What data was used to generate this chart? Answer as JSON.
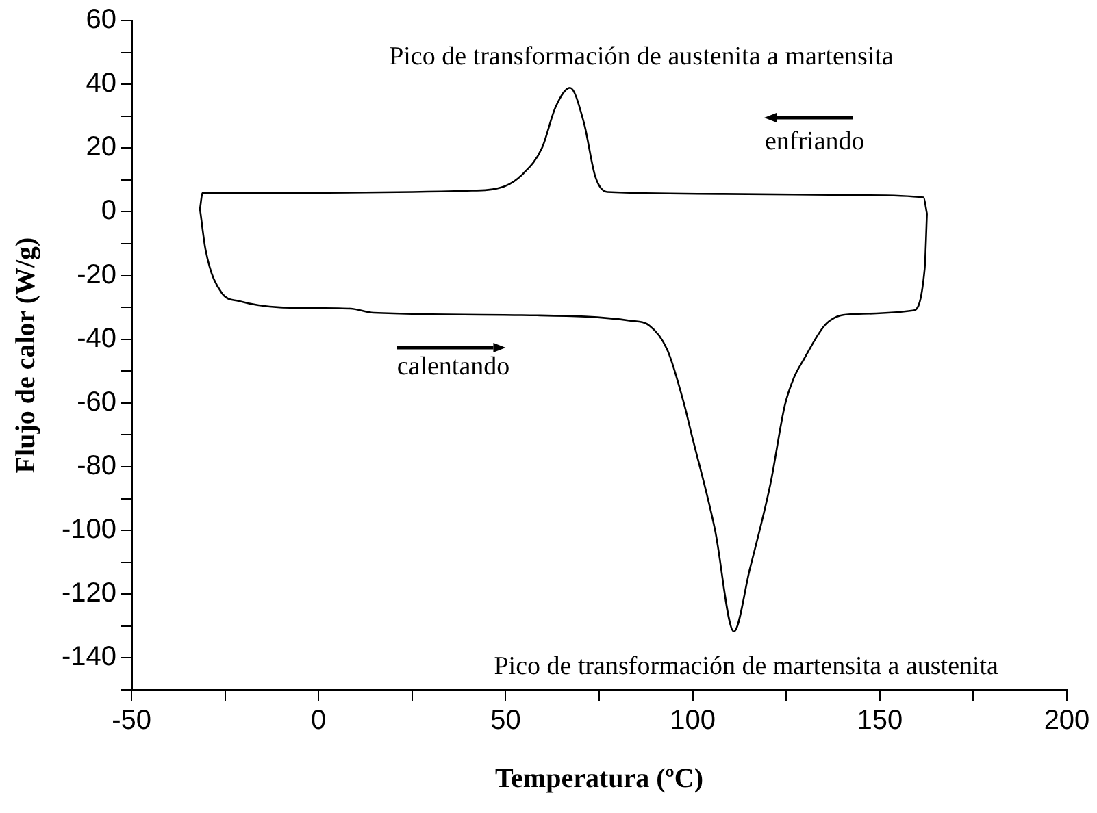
{
  "chart_data": {
    "type": "line",
    "xlabel": "Temperatura (ºC)",
    "ylabel": "Flujo de calor (W/g)",
    "series": [
      {
        "color": "#000000",
        "x": [
          -31.7,
          -30.2,
          -25.8,
          -21.4,
          -10.3,
          8.5,
          14.7,
          58.4,
          83.4,
          88.4,
          93.3,
          97.8,
          99.6,
          105.9,
          111,
          115.2,
          120.8,
          124.6,
          127,
          129.6,
          135.8,
          143.3,
          158.8,
          162,
          162.6
        ],
        "values": [
          0.9,
          -12,
          -25.6,
          -28,
          -30,
          -30.4,
          -31.7,
          -32.5,
          -34.2,
          -35.7,
          -43.6,
          -60.8,
          -69.4,
          -99.5,
          -131.7,
          -112.4,
          -85.2,
          -60.8,
          -52.2,
          -46.5,
          -35,
          -32.1,
          -31,
          -17.8,
          -0.6
        ]
      },
      {
        "color": "#000000",
        "x": [
          -31.7,
          -31,
          -16.5,
          39.7,
          49.7,
          54.7,
          59.7,
          63.4,
          67.2,
          70.9,
          74,
          77.2,
          108.3,
          145.7,
          161.7,
          162.6
        ],
        "values": [
          0.9,
          5.9,
          5.9,
          6.6,
          8,
          12,
          20,
          33,
          38.9,
          28,
          10.9,
          6.2,
          5.6,
          5.2,
          4.5,
          -0.6
        ]
      }
    ],
    "xlim": [
      -50,
      200
    ],
    "xticks": [
      -50,
      {
        "value": -25,
        "label": null
      },
      0,
      {
        "value": 25,
        "label": null
      },
      50,
      {
        "value": 75,
        "label": null
      },
      100,
      {
        "value": 125,
        "label": null
      },
      150,
      {
        "value": 175,
        "label": null
      },
      200
    ],
    "ylim": [
      -150,
      60
    ],
    "yticks": [
      {
        "value": -150,
        "label": null
      },
      -140,
      {
        "value": -130,
        "label": null
      },
      -120,
      {
        "value": -110,
        "label": null
      },
      -100,
      {
        "value": -90,
        "label": null
      },
      -80,
      {
        "value": -70,
        "label": null
      },
      -60,
      {
        "value": -50,
        "label": null
      },
      -40,
      {
        "value": -30,
        "label": null
      },
      -20,
      {
        "value": -10,
        "label": null
      },
      0,
      {
        "value": 10,
        "label": null
      },
      20,
      {
        "value": 30,
        "label": null
      },
      40,
      {
        "value": 50,
        "label": null
      },
      60
    ],
    "grid": false,
    "legend": false,
    "marker": "none",
    "line_style": "solid",
    "annotations": [
      {
        "text": "Pico de transformación de austenita a martensita",
        "x": 67.2,
        "y": 38.9
      },
      {
        "text": "Pico de transformación de martensita a austenita",
        "x": 111,
        "y": -131.7
      },
      "enfriando",
      "calentando"
    ]
  }
}
